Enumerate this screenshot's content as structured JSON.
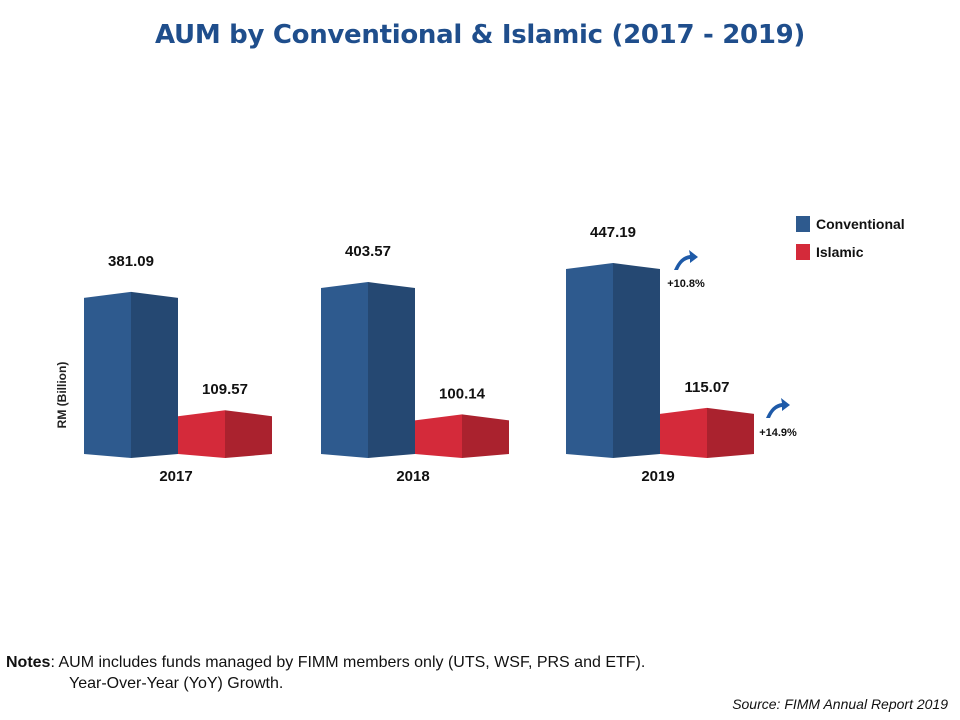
{
  "title": "AUM by Conventional & Islamic (2017 - 2019)",
  "chart_data": {
    "type": "bar",
    "title": "AUM by Conventional & Islamic (2017 - 2019)",
    "ylabel": "RM (Billion)",
    "xlabel": "",
    "categories": [
      "2017",
      "2018",
      "2019"
    ],
    "series": [
      {
        "name": "Conventional",
        "values": [
          381.09,
          403.57,
          447.19
        ],
        "color": "#2e5a8e"
      },
      {
        "name": "Islamic",
        "values": [
          109.57,
          100.14,
          115.07
        ],
        "color": "#d42a3a"
      }
    ],
    "value_labels": {
      "Conventional": [
        "381.09",
        "403.57",
        "447.19"
      ],
      "Islamic": [
        "109.57",
        "100.14",
        "115.07"
      ]
    },
    "growth_annotations": [
      {
        "series": "Conventional",
        "category": "2019",
        "text": "+10.8%",
        "icon": "up-arrow-icon"
      },
      {
        "series": "Islamic",
        "category": "2019",
        "text": "+14.9%",
        "icon": "up-arrow-icon"
      }
    ],
    "legend": {
      "placement": "top-right",
      "entries": [
        "Conventional",
        "Islamic"
      ]
    },
    "grid": false
  },
  "notes": {
    "label": "Notes",
    "line1": ": AUM includes funds managed by FIMM members only (UTS, WSF, PRS and ETF).",
    "line2": "Year-Over-Year (YoY) Growth."
  },
  "source": "Source: FIMM Annual Report 2019"
}
